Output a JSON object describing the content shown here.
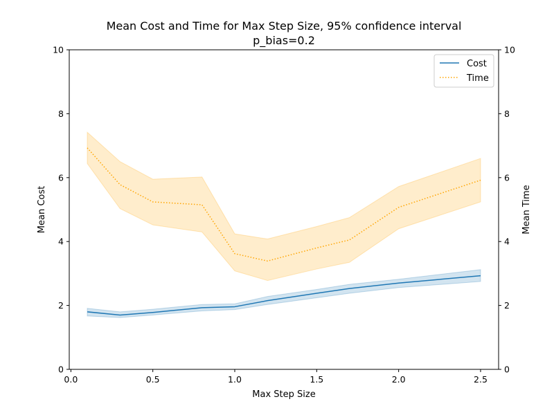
{
  "chart_data": {
    "type": "line",
    "title": "Mean Cost and Time for Max Step Size, 95% confidence interval",
    "subtitle": "p_bias=0.2",
    "xlabel": "Max Step Size",
    "ylabel_left": "Mean Cost",
    "ylabel_right": "Mean Time",
    "xlim": [
      -0.01,
      2.61
    ],
    "ylim": [
      0,
      10
    ],
    "x_ticks": [
      0.0,
      0.5,
      1.0,
      1.5,
      2.0,
      2.5
    ],
    "x_tick_labels": [
      "0.0",
      "0.5",
      "1.0",
      "1.5",
      "2.0",
      "2.5"
    ],
    "y_ticks": [
      0,
      2,
      4,
      6,
      8,
      10
    ],
    "y_tick_labels": [
      "0",
      "2",
      "4",
      "6",
      "8",
      "10"
    ],
    "grid": false,
    "legend_position": "top-right",
    "x": [
      0.1,
      0.3,
      0.5,
      0.8,
      1.0,
      1.2,
      1.5,
      1.7,
      2.0,
      2.5
    ],
    "series": [
      {
        "name": "Cost",
        "color": "#1f77b4",
        "style": "solid",
        "values": [
          1.8,
          1.7,
          1.78,
          1.93,
          1.96,
          2.15,
          2.38,
          2.53,
          2.7,
          2.93
        ],
        "ci_lower": [
          1.67,
          1.62,
          1.7,
          1.83,
          1.87,
          2.03,
          2.24,
          2.38,
          2.56,
          2.75
        ],
        "ci_upper": [
          1.91,
          1.8,
          1.88,
          2.03,
          2.05,
          2.28,
          2.5,
          2.66,
          2.82,
          3.12
        ]
      },
      {
        "name": "Time",
        "color": "#ffa500",
        "style": "dotted",
        "values": [
          6.93,
          5.78,
          5.24,
          5.15,
          3.62,
          3.39,
          3.8,
          4.05,
          5.07,
          5.92
        ],
        "ci_lower": [
          6.44,
          5.03,
          4.52,
          4.3,
          3.08,
          2.78,
          3.14,
          3.35,
          4.4,
          5.24
        ],
        "ci_upper": [
          7.42,
          6.5,
          5.95,
          6.02,
          4.24,
          4.08,
          4.47,
          4.75,
          5.72,
          6.6
        ]
      }
    ]
  }
}
